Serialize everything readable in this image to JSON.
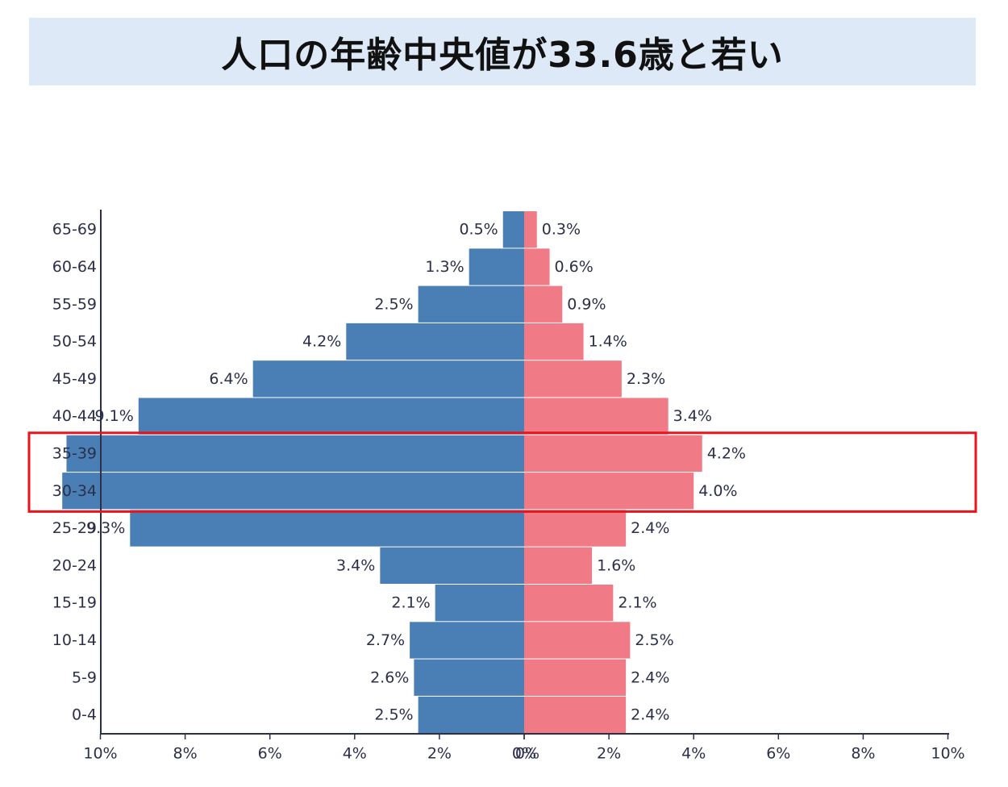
{
  "title": "人口の年齢中央値が33.6歳と若い",
  "colors": {
    "male": "#4a7fb5",
    "female": "#f07a86",
    "highlight": "#e8141c",
    "axis": "#2b2f4a",
    "text": "#2b2f4a",
    "banner": "#dde9f6"
  },
  "chart_data": {
    "type": "bar",
    "orientation": "horizontal-population-pyramid",
    "categories": [
      "65-69",
      "60-64",
      "55-59",
      "50-54",
      "45-49",
      "40-44",
      "35-39",
      "30-34",
      "25-29",
      "20-24",
      "15-19",
      "10-14",
      "5-9",
      "0-4"
    ],
    "series": [
      {
        "side": "left",
        "values": [
          0.5,
          1.3,
          2.5,
          4.2,
          6.4,
          9.1,
          10.8,
          10.9,
          9.3,
          3.4,
          2.1,
          2.7,
          2.6,
          2.5
        ]
      },
      {
        "side": "right",
        "values": [
          0.3,
          0.6,
          0.9,
          1.4,
          2.3,
          3.4,
          4.2,
          4.0,
          2.4,
          1.6,
          2.1,
          2.5,
          2.4,
          2.4
        ]
      }
    ],
    "data_labels_left": [
      "0.5%",
      "1.3%",
      "2.5%",
      "4.2%",
      "6.4%",
      "9.1%",
      "",
      "",
      "9.3%",
      "3.4%",
      "2.1%",
      "2.7%",
      "2.6%",
      "2.5%"
    ],
    "data_labels_right": [
      "0.3%",
      "0.6%",
      "0.9%",
      "1.4%",
      "2.3%",
      "3.4%",
      "4.2%",
      "4.0%",
      "2.4%",
      "1.6%",
      "2.1%",
      "2.5%",
      "2.4%",
      "2.4%"
    ],
    "x_ticks_left": [
      "10%",
      "8%",
      "6%",
      "4%",
      "2%",
      "0%"
    ],
    "x_ticks_right": [
      "0%",
      "2%",
      "4%",
      "6%",
      "8%",
      "10%"
    ],
    "xlim": [
      0,
      10
    ],
    "highlighted_categories": [
      "35-39",
      "30-34"
    ],
    "grid": false
  }
}
